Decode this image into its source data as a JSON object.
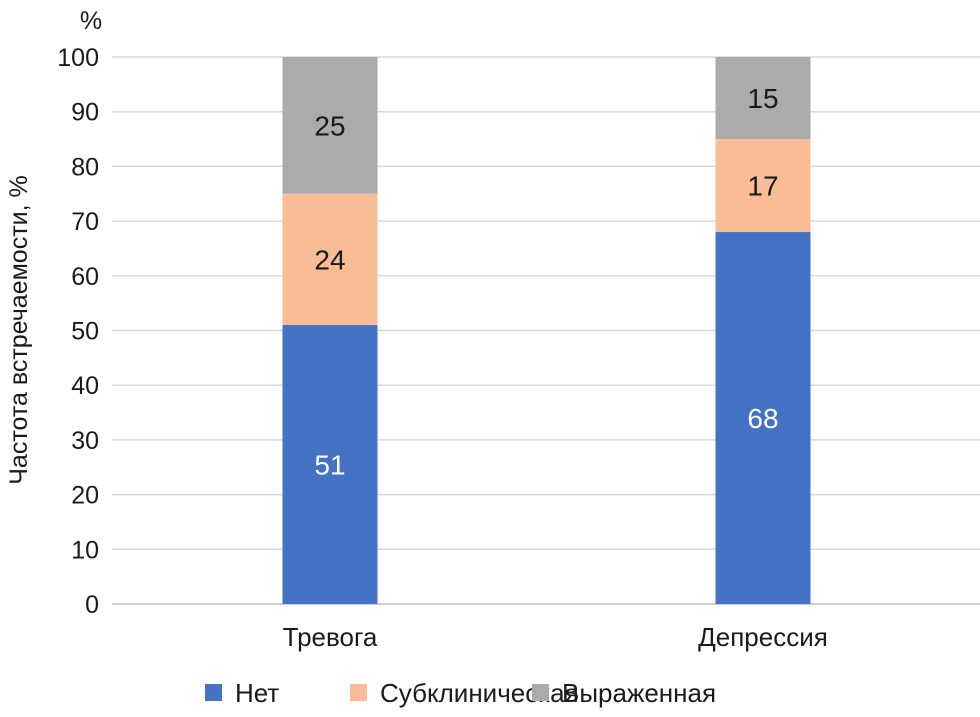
{
  "chart_data": {
    "type": "bar",
    "stacked": true,
    "unit_label": "%",
    "ylabel": "Частота встречаемости, %",
    "xlabel": "",
    "ylim": [
      0,
      100
    ],
    "yticks": [
      0,
      10,
      20,
      30,
      40,
      50,
      60,
      70,
      80,
      90,
      100
    ],
    "grid": true,
    "legend_position": "bottom",
    "categories": [
      "Тревога",
      "Депрессия"
    ],
    "series": [
      {
        "name": "Нет",
        "values": [
          51,
          68
        ],
        "color": "#4472C4",
        "label_color": "#ffffff"
      },
      {
        "name": "Субклиническая",
        "values": [
          24,
          17
        ],
        "color": "#F8BC96",
        "label_color": "#1a1a1a"
      },
      {
        "name": "Выраженная",
        "values": [
          25,
          15
        ],
        "color": "#ABABAB",
        "label_color": "#1a1a1a"
      }
    ]
  }
}
